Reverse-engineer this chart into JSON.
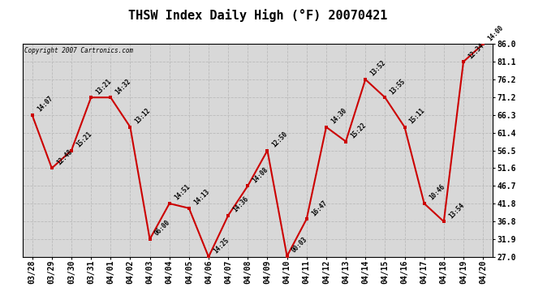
{
  "title": "THSW Index Daily High (°F) 20070421",
  "copyright": "Copyright 2007 Cartronics.com",
  "line_color": "#cc0000",
  "marker_color": "#cc0000",
  "background_color": "#ffffff",
  "grid_color": "#bbbbbb",
  "plot_bg_color": "#d8d8d8",
  "x_labels": [
    "03/28",
    "03/29",
    "03/30",
    "03/31",
    "04/01",
    "04/02",
    "04/03",
    "04/04",
    "04/05",
    "04/06",
    "04/07",
    "04/08",
    "04/09",
    "04/10",
    "04/11",
    "04/12",
    "04/13",
    "04/14",
    "04/15",
    "04/16",
    "04/17",
    "04/18",
    "04/19",
    "04/20"
  ],
  "y_values": [
    66.3,
    51.6,
    56.5,
    71.2,
    71.2,
    63.0,
    31.9,
    41.8,
    40.5,
    27.0,
    38.5,
    46.7,
    56.5,
    27.2,
    37.5,
    63.0,
    59.0,
    76.2,
    71.2,
    63.0,
    41.8,
    36.8,
    81.1,
    86.0
  ],
  "point_labels": [
    "14:07",
    "12:48",
    "15:21",
    "13:21",
    "14:32",
    "13:12",
    "06:00",
    "14:51",
    "14:13",
    "14:25",
    "14:36",
    "14:08",
    "12:50",
    "00:03",
    "16:47",
    "14:30",
    "15:22",
    "13:52",
    "13:55",
    "15:11",
    "10:46",
    "13:54",
    "12:34",
    "14:00"
  ],
  "ylim_min": 27.0,
  "ylim_max": 86.0,
  "yticks": [
    27.0,
    31.9,
    36.8,
    41.8,
    46.7,
    51.6,
    56.5,
    61.4,
    66.3,
    71.2,
    76.2,
    81.1,
    86.0
  ],
  "title_fontsize": 11,
  "tick_fontsize": 7,
  "annot_fontsize": 5.5
}
